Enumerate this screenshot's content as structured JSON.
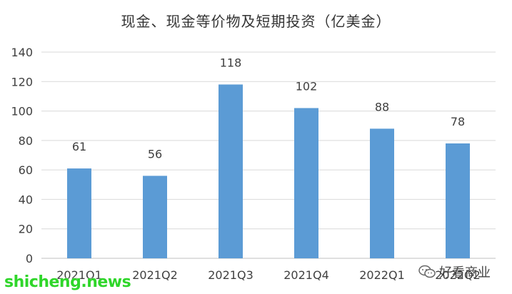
{
  "chart_data": {
    "type": "bar",
    "title": "现金、现金等价物及短期投资（亿美金）",
    "categories": [
      "2021Q1",
      "2021Q2",
      "2021Q3",
      "2021Q4",
      "2022Q1",
      "2022Q2"
    ],
    "values": [
      61,
      56,
      118,
      102,
      88,
      78
    ],
    "data_labels": [
      "61",
      "56",
      "118",
      "102",
      "88",
      "78"
    ],
    "ylim": [
      0,
      140
    ],
    "yticks": [
      0,
      20,
      40,
      60,
      80,
      100,
      120,
      140
    ],
    "grid": true,
    "legend": "none",
    "colors": {
      "bar": "#5b9bd5",
      "grid": "#d9d9d9",
      "text": "#404040"
    }
  },
  "watermarks": {
    "site": "shicheng.news",
    "brand": "好看商业",
    "brand_icon": "wechat-icon"
  }
}
